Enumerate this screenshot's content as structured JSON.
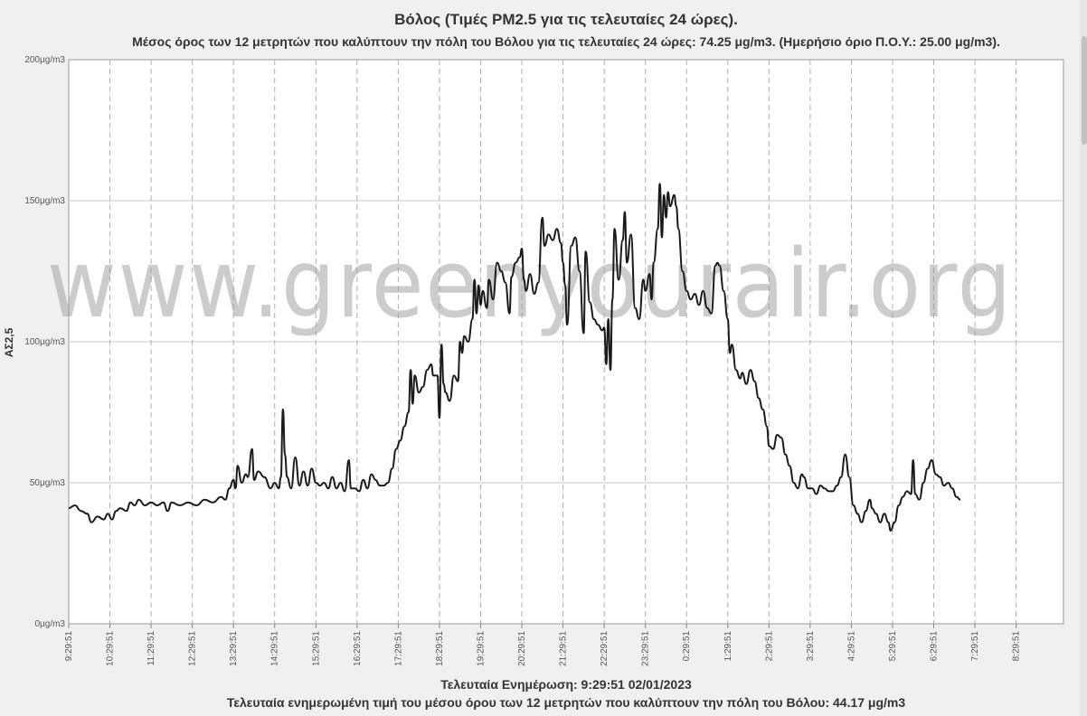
{
  "title": "Βόλος (Τιμές PM2.5 για τις τελευταίες 24 ώρες).",
  "subtitle": "Μέσος όρος των 12 μετρητών που καλύπτουν την πόλη του Βόλου για τις τελευταίες 24 ώρες: 74.25 μg/m3. (Ημερήσιο όριο Π.Ο.Υ.: 25.00 μg/m3).",
  "footer": {
    "last_update": "Τελευταία Ενημέρωση: 9:29:51 02/01/2023",
    "last_value": "Τελευταία ενημερωμένη τιμή του μέσου όρου των 12 μετρητών που καλύπτουν την πόλη του Βόλου: 44.17 μg/m3"
  },
  "watermark": "www.greenyourair.org",
  "colors": {
    "line": "#1a1a1a",
    "grid": "#c8c8c8",
    "background": "#ffffff",
    "page": "#f0f0f0"
  },
  "chart_data": {
    "type": "line",
    "title": "Βόλος (Τιμές PM2.5 για τις τελευταίες 24 ώρες).",
    "xlabel": "",
    "ylabel": "ΑΣ2,5",
    "ylim": [
      0,
      200
    ],
    "xlim": [
      0,
      24
    ],
    "y_ticks": [
      {
        "value": 0,
        "label": "0μg/m3"
      },
      {
        "value": 50,
        "label": "50μg/m3"
      },
      {
        "value": 100,
        "label": "100μg/m3"
      },
      {
        "value": 150,
        "label": "150μg/m3"
      },
      {
        "value": 200,
        "label": "200μg/m3"
      }
    ],
    "x_ticks": [
      {
        "value": 0,
        "label": "9:29:51"
      },
      {
        "value": 1,
        "label": "10:29:51"
      },
      {
        "value": 2,
        "label": "11:29:51"
      },
      {
        "value": 3,
        "label": "12:29:51"
      },
      {
        "value": 4,
        "label": "13:29:51"
      },
      {
        "value": 5,
        "label": "14:29:51"
      },
      {
        "value": 6,
        "label": "15:29:51"
      },
      {
        "value": 7,
        "label": "16:29:51"
      },
      {
        "value": 8,
        "label": "17:29:51"
      },
      {
        "value": 9,
        "label": "18:29:51"
      },
      {
        "value": 10,
        "label": "19:29:51"
      },
      {
        "value": 11,
        "label": "20:29:51"
      },
      {
        "value": 12,
        "label": "21:29:51"
      },
      {
        "value": 13,
        "label": "22:29:51"
      },
      {
        "value": 14,
        "label": "23:29:51"
      },
      {
        "value": 15,
        "label": "0:29:51"
      },
      {
        "value": 16,
        "label": "1:29:51"
      },
      {
        "value": 17,
        "label": "2:29:51"
      },
      {
        "value": 18,
        "label": "3:29:51"
      },
      {
        "value": 19,
        "label": "4:29:51"
      },
      {
        "value": 20,
        "label": "5:29:51"
      },
      {
        "value": 21,
        "label": "6:29:51"
      },
      {
        "value": 22,
        "label": "7:29:51"
      },
      {
        "value": 23,
        "label": "8:29:51"
      }
    ],
    "grid": {
      "horizontal": true,
      "vertical_dashed": true
    },
    "series": [
      {
        "values": [
          [
            0.0,
            41
          ],
          [
            0.15,
            42
          ],
          [
            0.3,
            40
          ],
          [
            0.45,
            39
          ],
          [
            0.55,
            36
          ],
          [
            0.7,
            38
          ],
          [
            0.85,
            37
          ],
          [
            0.95,
            39
          ],
          [
            1.05,
            37
          ],
          [
            1.15,
            40
          ],
          [
            1.25,
            41
          ],
          [
            1.4,
            40
          ],
          [
            1.5,
            43
          ],
          [
            1.6,
            42
          ],
          [
            1.7,
            44
          ],
          [
            1.85,
            42
          ],
          [
            2.0,
            43
          ],
          [
            2.15,
            42
          ],
          [
            2.3,
            43
          ],
          [
            2.4,
            40
          ],
          [
            2.5,
            43
          ],
          [
            2.7,
            42
          ],
          [
            2.9,
            43
          ],
          [
            3.1,
            42
          ],
          [
            3.3,
            44
          ],
          [
            3.5,
            43
          ],
          [
            3.7,
            45
          ],
          [
            3.8,
            44
          ],
          [
            3.9,
            48
          ],
          [
            4.0,
            51
          ],
          [
            4.05,
            48
          ],
          [
            4.1,
            56
          ],
          [
            4.2,
            50
          ],
          [
            4.3,
            53
          ],
          [
            4.35,
            52
          ],
          [
            4.45,
            62
          ],
          [
            4.5,
            51
          ],
          [
            4.6,
            54
          ],
          [
            4.75,
            52
          ],
          [
            4.9,
            48
          ],
          [
            5.0,
            50
          ],
          [
            5.1,
            48
          ],
          [
            5.15,
            52
          ],
          [
            5.2,
            76
          ],
          [
            5.25,
            60
          ],
          [
            5.3,
            52
          ],
          [
            5.4,
            48
          ],
          [
            5.5,
            59
          ],
          [
            5.6,
            49
          ],
          [
            5.7,
            54
          ],
          [
            5.8,
            49
          ],
          [
            5.9,
            55
          ],
          [
            6.0,
            50
          ],
          [
            6.1,
            49
          ],
          [
            6.2,
            50
          ],
          [
            6.3,
            48
          ],
          [
            6.4,
            52
          ],
          [
            6.5,
            48
          ],
          [
            6.6,
            50
          ],
          [
            6.7,
            47
          ],
          [
            6.8,
            58
          ],
          [
            6.85,
            48
          ],
          [
            6.95,
            48
          ],
          [
            7.05,
            47
          ],
          [
            7.15,
            51
          ],
          [
            7.25,
            48
          ],
          [
            7.35,
            53
          ],
          [
            7.45,
            51
          ],
          [
            7.55,
            49
          ],
          [
            7.65,
            49
          ],
          [
            7.75,
            50
          ],
          [
            7.85,
            55
          ],
          [
            7.95,
            62
          ],
          [
            8.05,
            65
          ],
          [
            8.15,
            70
          ],
          [
            8.25,
            75
          ],
          [
            8.3,
            90
          ],
          [
            8.35,
            78
          ],
          [
            8.4,
            88
          ],
          [
            8.5,
            82
          ],
          [
            8.6,
            84
          ],
          [
            8.7,
            90
          ],
          [
            8.8,
            92
          ],
          [
            8.85,
            88
          ],
          [
            8.95,
            88
          ],
          [
            9.0,
            73
          ],
          [
            9.05,
            99
          ],
          [
            9.1,
            85
          ],
          [
            9.15,
            82
          ],
          [
            9.25,
            79
          ],
          [
            9.35,
            88
          ],
          [
            9.45,
            86
          ],
          [
            9.5,
            100
          ],
          [
            9.55,
            96
          ],
          [
            9.6,
            102
          ],
          [
            9.7,
            100
          ],
          [
            9.8,
            108
          ],
          [
            9.85,
            122
          ],
          [
            9.9,
            110
          ],
          [
            9.95,
            120
          ],
          [
            10.0,
            113
          ],
          [
            10.05,
            118
          ],
          [
            10.15,
            112
          ],
          [
            10.2,
            122
          ],
          [
            10.3,
            115
          ],
          [
            10.4,
            128
          ],
          [
            10.5,
            125
          ],
          [
            10.6,
            121
          ],
          [
            10.7,
            110
          ],
          [
            10.75,
            123
          ],
          [
            10.85,
            128
          ],
          [
            10.95,
            130
          ],
          [
            11.0,
            133
          ],
          [
            11.05,
            122
          ],
          [
            11.1,
            118
          ],
          [
            11.2,
            124
          ],
          [
            11.3,
            117
          ],
          [
            11.4,
            121
          ],
          [
            11.5,
            144
          ],
          [
            11.55,
            134
          ],
          [
            11.65,
            138
          ],
          [
            11.75,
            136
          ],
          [
            11.85,
            140
          ],
          [
            11.95,
            135
          ],
          [
            12.0,
            128
          ],
          [
            12.05,
            120
          ],
          [
            12.1,
            106
          ],
          [
            12.2,
            134
          ],
          [
            12.3,
            137
          ],
          [
            12.4,
            125
          ],
          [
            12.5,
            103
          ],
          [
            12.55,
            132
          ],
          [
            12.65,
            114
          ],
          [
            12.75,
            108
          ],
          [
            12.85,
            106
          ],
          [
            12.95,
            104
          ],
          [
            13.0,
            105
          ],
          [
            13.05,
            92
          ],
          [
            13.1,
            108
          ],
          [
            13.15,
            90
          ],
          [
            13.2,
            115
          ],
          [
            13.25,
            140
          ],
          [
            13.35,
            122
          ],
          [
            13.45,
            136
          ],
          [
            13.5,
            146
          ],
          [
            13.55,
            128
          ],
          [
            13.65,
            138
          ],
          [
            13.75,
            112
          ],
          [
            13.85,
            108
          ],
          [
            13.95,
            122
          ],
          [
            14.0,
            118
          ],
          [
            14.1,
            124
          ],
          [
            14.15,
            115
          ],
          [
            14.2,
            128
          ],
          [
            14.3,
            140
          ],
          [
            14.35,
            156
          ],
          [
            14.4,
            137
          ],
          [
            14.45,
            152
          ],
          [
            14.5,
            144
          ],
          [
            14.55,
            153
          ],
          [
            14.6,
            148
          ],
          [
            14.7,
            152
          ],
          [
            14.75,
            148
          ],
          [
            14.8,
            140
          ],
          [
            14.9,
            125
          ],
          [
            15.0,
            118
          ],
          [
            15.1,
            115
          ],
          [
            15.2,
            117
          ],
          [
            15.3,
            113
          ],
          [
            15.4,
            118
          ],
          [
            15.5,
            112
          ],
          [
            15.6,
            110
          ],
          [
            15.7,
            127
          ],
          [
            15.75,
            128
          ],
          [
            15.8,
            127
          ],
          [
            15.9,
            118
          ],
          [
            16.0,
            108
          ],
          [
            16.05,
            96
          ],
          [
            16.1,
            99
          ],
          [
            16.2,
            90
          ],
          [
            16.3,
            87
          ],
          [
            16.35,
            89
          ],
          [
            16.45,
            85
          ],
          [
            16.55,
            90
          ],
          [
            16.65,
            86
          ],
          [
            16.75,
            80
          ],
          [
            16.85,
            76
          ],
          [
            16.95,
            70
          ],
          [
            17.0,
            63
          ],
          [
            17.1,
            62
          ],
          [
            17.2,
            67
          ],
          [
            17.3,
            66
          ],
          [
            17.4,
            60
          ],
          [
            17.5,
            56
          ],
          [
            17.6,
            50
          ],
          [
            17.7,
            48
          ],
          [
            17.8,
            53
          ],
          [
            17.85,
            52
          ],
          [
            17.95,
            48
          ],
          [
            18.05,
            48
          ],
          [
            18.15,
            46
          ],
          [
            18.25,
            49
          ],
          [
            18.35,
            48
          ],
          [
            18.45,
            47
          ],
          [
            18.55,
            47
          ],
          [
            18.65,
            49
          ],
          [
            18.75,
            52
          ],
          [
            18.85,
            60
          ],
          [
            18.95,
            52
          ],
          [
            19.05,
            42
          ],
          [
            19.15,
            39
          ],
          [
            19.25,
            36
          ],
          [
            19.35,
            40
          ],
          [
            19.45,
            44
          ],
          [
            19.5,
            41
          ],
          [
            19.6,
            39
          ],
          [
            19.7,
            36
          ],
          [
            19.8,
            39
          ],
          [
            19.9,
            36
          ],
          [
            19.95,
            33
          ],
          [
            20.05,
            36
          ],
          [
            20.15,
            42
          ],
          [
            20.25,
            45
          ],
          [
            20.35,
            47
          ],
          [
            20.45,
            46
          ],
          [
            20.5,
            58
          ],
          [
            20.55,
            46
          ],
          [
            20.65,
            44
          ],
          [
            20.75,
            50
          ],
          [
            20.85,
            55
          ],
          [
            20.95,
            58
          ],
          [
            21.05,
            53
          ],
          [
            21.15,
            52
          ],
          [
            21.25,
            49
          ],
          [
            21.35,
            50
          ],
          [
            21.45,
            48
          ],
          [
            21.55,
            45
          ],
          [
            21.65,
            44
          ]
        ]
      }
    ]
  }
}
